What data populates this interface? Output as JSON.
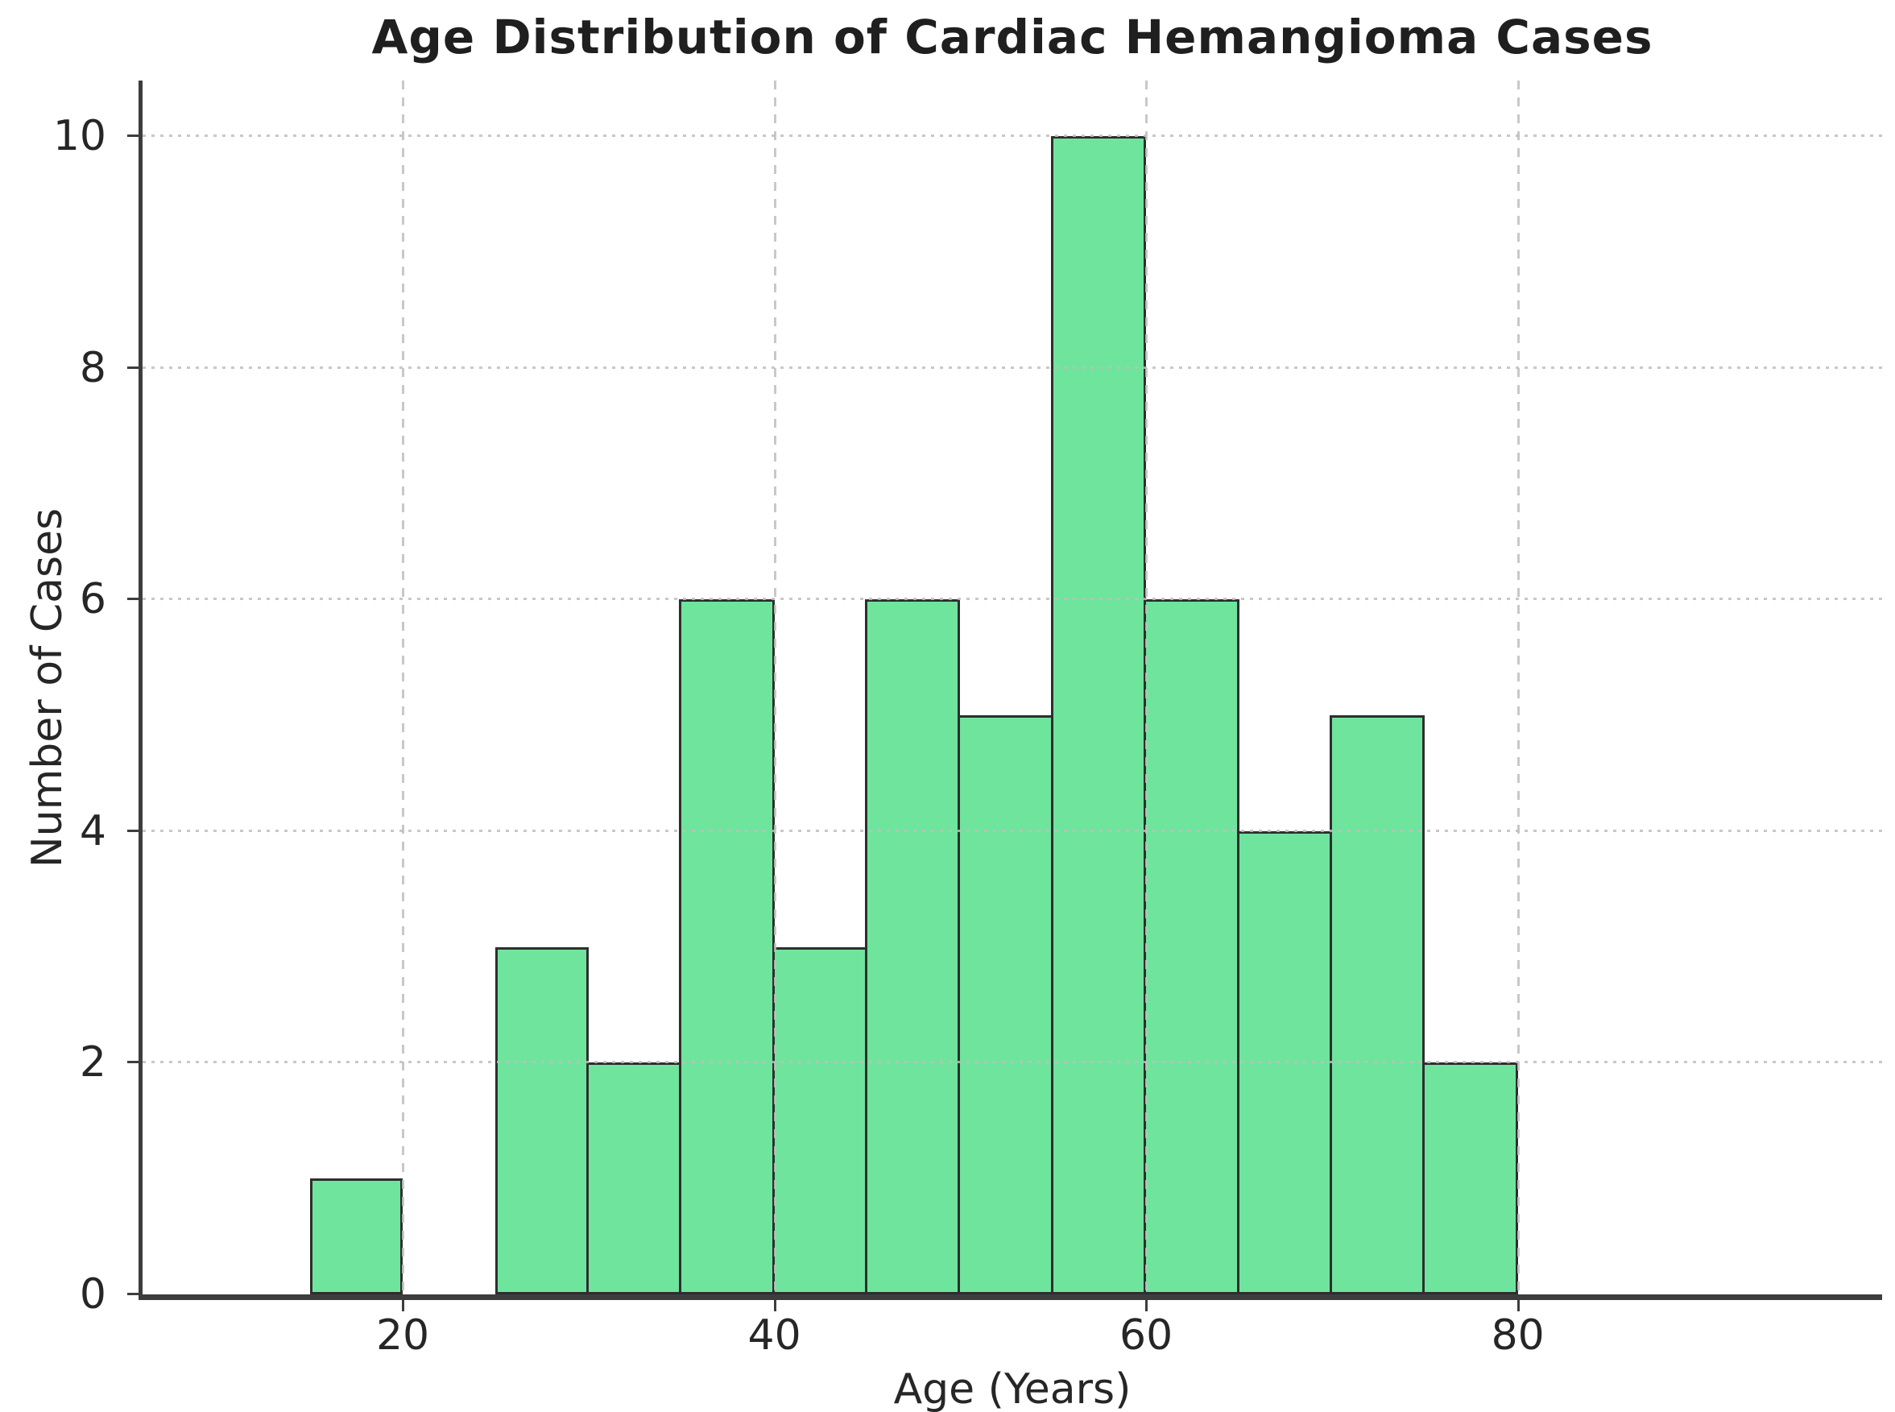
{
  "figure_title": "Age Distribution of Cardiac Hemangioma Cases",
  "chart_data": {
    "type": "bar",
    "subtype": "histogram",
    "title": "Age Distribution of Cardiac Hemangioma Cases",
    "xlabel": "Age (Years)",
    "ylabel": "Number of Cases",
    "bin_width_years": 5,
    "bins": [
      {
        "x0": 15,
        "x1": 20,
        "count": 1
      },
      {
        "x0": 20,
        "x1": 25,
        "count": 0
      },
      {
        "x0": 25,
        "x1": 30,
        "count": 3
      },
      {
        "x0": 30,
        "x1": 35,
        "count": 2
      },
      {
        "x0": 35,
        "x1": 40,
        "count": 6
      },
      {
        "x0": 40,
        "x1": 45,
        "count": 3
      },
      {
        "x0": 45,
        "x1": 50,
        "count": 6
      },
      {
        "x0": 50,
        "x1": 55,
        "count": 5
      },
      {
        "x0": 55,
        "x1": 60,
        "count": 10
      },
      {
        "x0": 60,
        "x1": 65,
        "count": 6
      },
      {
        "x0": 65,
        "x1": 70,
        "count": 4
      },
      {
        "x0": 70,
        "x1": 75,
        "count": 5
      },
      {
        "x0": 75,
        "x1": 80,
        "count": 2
      }
    ],
    "x_ticks": [
      {
        "value": 20,
        "label": "20"
      },
      {
        "value": 40,
        "label": "40"
      },
      {
        "value": 60,
        "label": "60"
      },
      {
        "value": 80,
        "label": "80"
      }
    ],
    "y_ticks": [
      {
        "value": 0,
        "label": "0"
      },
      {
        "value": 2,
        "label": "2"
      },
      {
        "value": 4,
        "label": "4"
      },
      {
        "value": 6,
        "label": "6"
      },
      {
        "value": 8,
        "label": "8"
      },
      {
        "value": 10,
        "label": "10"
      }
    ],
    "xlim": [
      6,
      99.6
    ],
    "ylim": [
      0,
      10.48
    ],
    "grid": true,
    "legend": null,
    "colors": {
      "bar_fill": "#6fe49d",
      "bar_edge": "#2e2e2e",
      "grid": "#c8c8c8",
      "axis": "#3d3d3d",
      "text": "#262626",
      "title": "#1f1f1f",
      "background": "#ffffff"
    }
  }
}
